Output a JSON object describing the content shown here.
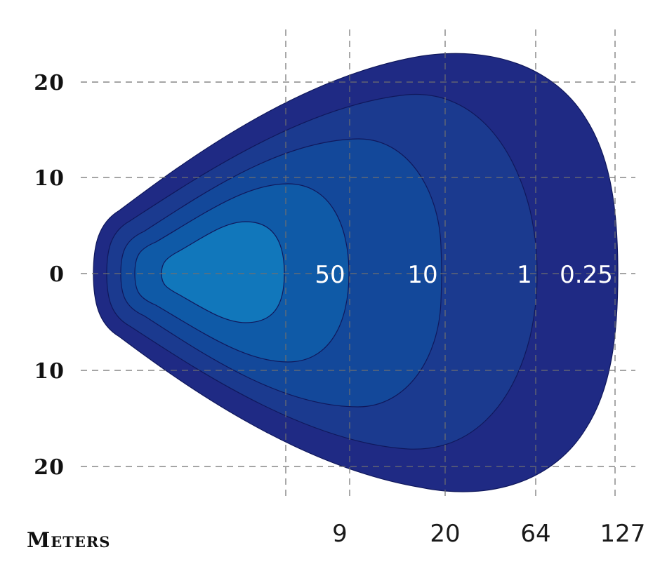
{
  "chart_data": {
    "type": "isolux-contour",
    "xlabel": "Meters",
    "x_ticks": [
      "9",
      "20",
      "64",
      "127"
    ],
    "y_ticks": [
      "20",
      "10",
      "0",
      "10",
      "20"
    ],
    "series": [
      {
        "value": "0.25",
        "color": "#1f2a84",
        "reach": 127,
        "half_width": 22
      },
      {
        "value": "1",
        "color": "#1b3a8f",
        "reach": 64,
        "half_width": 18.5
      },
      {
        "value": "10",
        "color": "#13489a",
        "reach": 20,
        "half_width": 14
      },
      {
        "value": "50",
        "color": "#0f5aa7",
        "reach": 9,
        "half_width": 9.5
      },
      {
        "value": "",
        "color": "#1177bb",
        "reach": 5,
        "half_width": 5.5
      }
    ],
    "grid": true
  }
}
